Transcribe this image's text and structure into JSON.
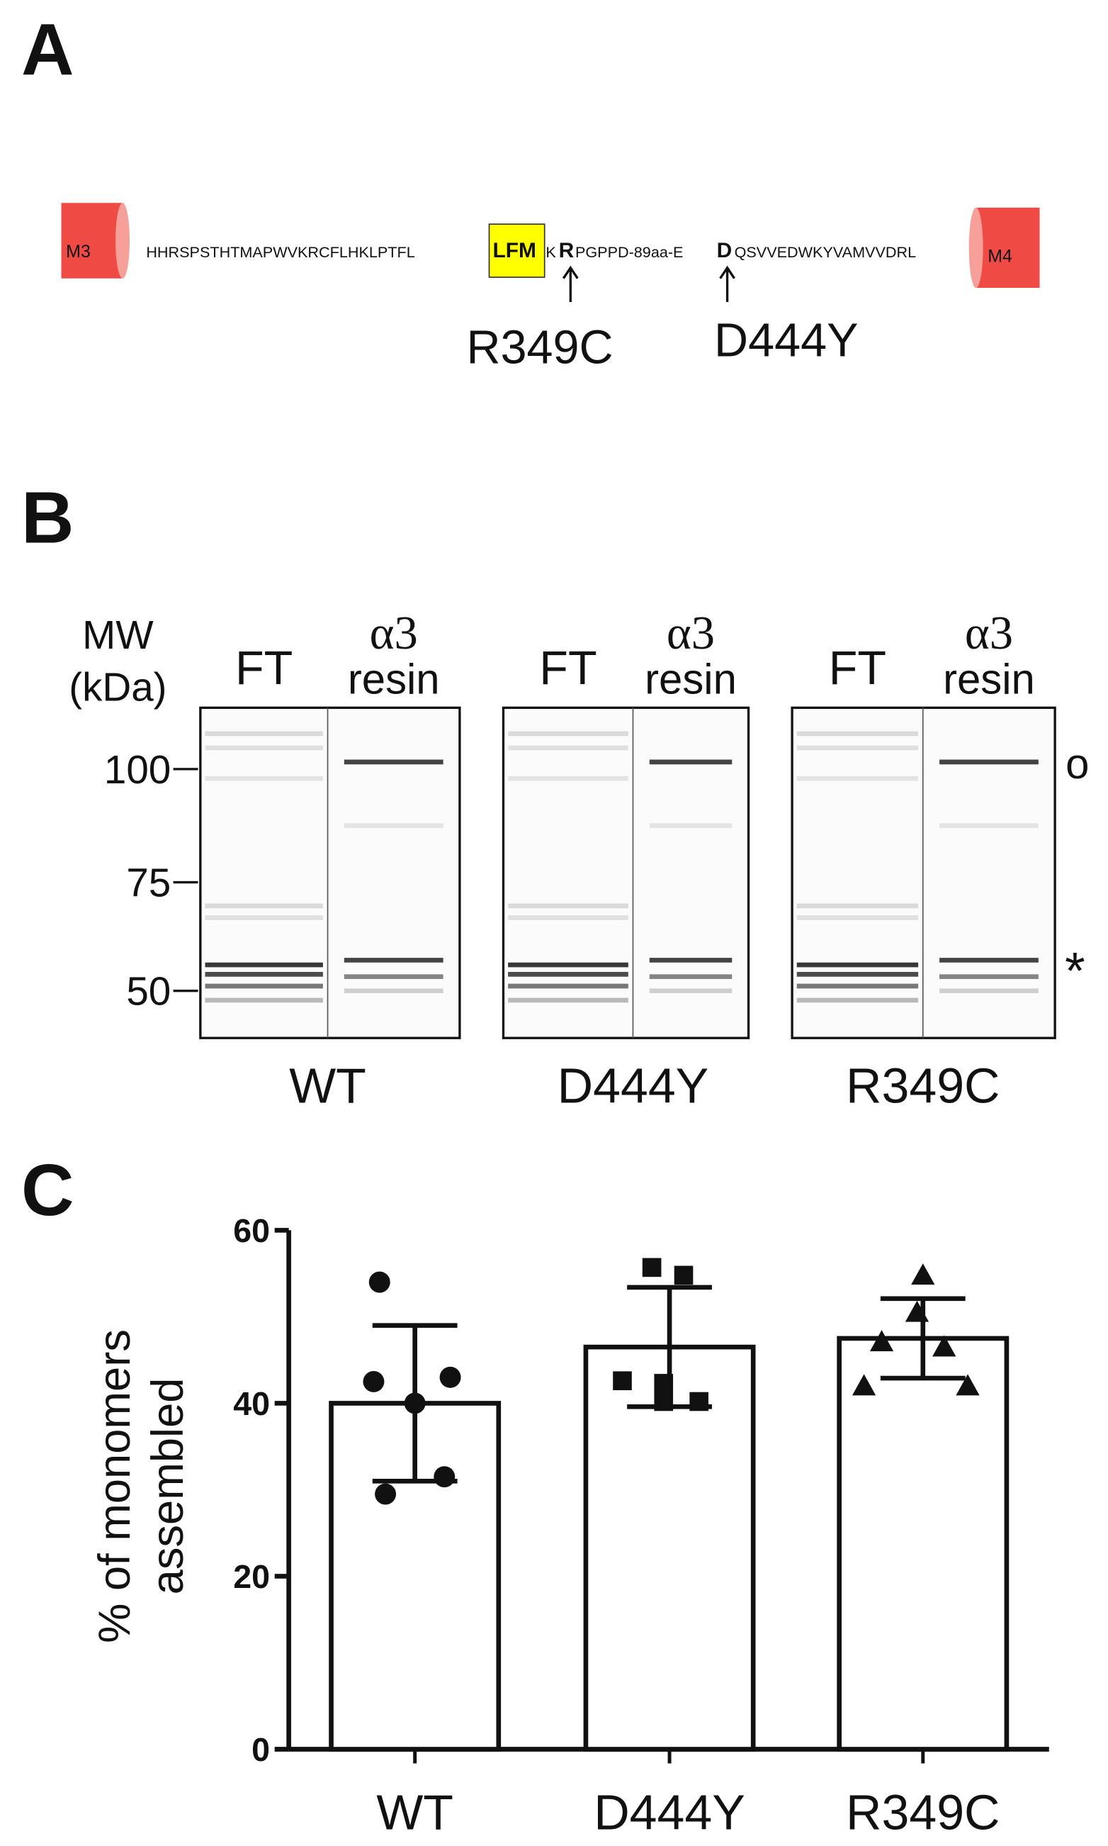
{
  "panel_a": {
    "label": "A",
    "left_helix": "M3",
    "right_helix": "M4",
    "sequence": [
      "HHRSPSTHTMAPWVKRCFLHKLPTFL",
      "LFM",
      "K",
      "R",
      "PGPPD-89aa-E",
      "D",
      "QSVVEDWKYVAMVVDRL"
    ],
    "mutations": [
      "R349C",
      "D444Y"
    ]
  },
  "panel_b": {
    "label": "B",
    "mw_title": [
      "MW",
      "(kDa)"
    ],
    "mw_markers": [
      "100",
      "75",
      "50"
    ],
    "lanes": [
      {
        "flow": "FT",
        "resin": [
          "α3",
          "resin"
        ],
        "sample": "WT"
      },
      {
        "flow": "FT",
        "resin": [
          "α3",
          "resin"
        ],
        "sample": "D444Y"
      },
      {
        "flow": "FT",
        "resin": [
          "α3",
          "resin"
        ],
        "sample": "R349C"
      }
    ],
    "symbols": [
      "o",
      "*"
    ]
  },
  "chart_data": {
    "type": "bar",
    "label": "C",
    "ylabel": [
      "% of monomers",
      "assembled"
    ],
    "categories": [
      "WT",
      "D444Y",
      "R349C"
    ],
    "values": [
      40,
      46.5,
      47.5
    ],
    "errors": [
      9,
      6.9,
      4.6
    ],
    "points": [
      [
        54,
        42.5,
        43,
        40,
        31.5,
        29.5
      ],
      [
        55.7,
        54.8,
        42.6,
        42.3,
        40.2,
        40.2
      ],
      [
        54.8,
        50.5,
        47.1,
        46.5,
        42,
        42
      ]
    ],
    "markers": [
      "circle",
      "square",
      "triangle"
    ],
    "color": "#ffffff",
    "ylim": [
      0,
      60
    ],
    "yticks": [
      0,
      20,
      40,
      60
    ]
  }
}
